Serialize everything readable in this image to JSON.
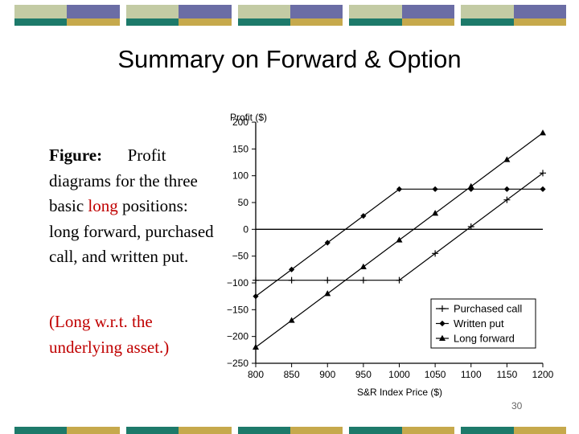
{
  "slide": {
    "title": "Summary on Forward & Option",
    "caption_label": "Figure:",
    "caption_part1": "Profit diagrams for the three basic",
    "caption_highlight": "long",
    "caption_part2": "positions: long forward, purchased call, and written put.",
    "note": "(Long w.r.t. the underlying asset.)",
    "page_number": "30"
  },
  "colors": {
    "band_sage": "#c3cba4",
    "band_lavender": "#6b6da5",
    "band_teal": "#1d7a6a",
    "band_gold": "#c6a94c",
    "accent_red": "#c00000"
  },
  "chart_data": {
    "type": "line",
    "title": "",
    "xlabel": "S&R Index Price ($)",
    "ylabel": "Profit ($)",
    "xlim": [
      800,
      1200
    ],
    "ylim": [
      -250,
      200
    ],
    "x_ticks": [
      800,
      850,
      900,
      950,
      1000,
      1050,
      1100,
      1150,
      1200
    ],
    "y_ticks": [
      200,
      150,
      100,
      50,
      0,
      -50,
      -100,
      -150,
      -200,
      -250
    ],
    "y_tick_labels": [
      "200",
      "150",
      "100",
      "50",
      "0",
      "−50",
      "−100",
      "−150",
      "−200",
      "−250"
    ],
    "legend_position": "bottom-right",
    "grid": false,
    "series": [
      {
        "name": "Purchased call",
        "marker": "plus",
        "x": [
          800,
          850,
          900,
          950,
          1000,
          1050,
          1100,
          1150,
          1200
        ],
        "values": [
          -95,
          -95,
          -95,
          -95,
          -95,
          -45,
          5,
          55,
          105
        ]
      },
      {
        "name": "Written put",
        "marker": "diamond",
        "x": [
          800,
          850,
          900,
          950,
          1000,
          1050,
          1100,
          1150,
          1200
        ],
        "values": [
          -125,
          -75,
          -25,
          25,
          75,
          75,
          75,
          75,
          75
        ]
      },
      {
        "name": "Long forward",
        "marker": "triangle",
        "x": [
          800,
          850,
          900,
          950,
          1000,
          1050,
          1100,
          1150,
          1200
        ],
        "values": [
          -220,
          -170,
          -120,
          -70,
          -20,
          30,
          80,
          130,
          180
        ]
      }
    ]
  }
}
